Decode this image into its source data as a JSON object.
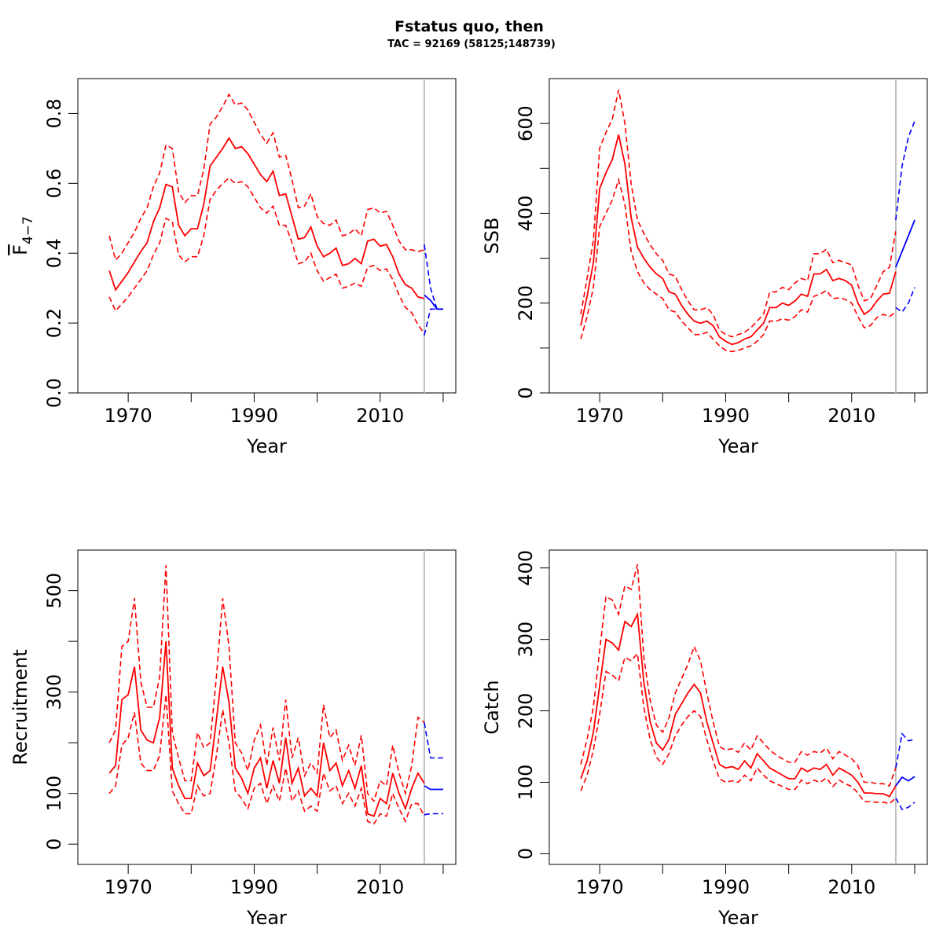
{
  "figure": {
    "title": "Fstatus quo, then",
    "subtitle": "TAC = 92169 (58125;148739)"
  },
  "colors": {
    "historic": "#ff0000",
    "forecast": "#0000ff",
    "divider": "#bebebe",
    "axis": "#000000"
  },
  "chart_data": [
    {
      "type": "line",
      "panel": "top-left",
      "title": "",
      "xlabel": "Year",
      "ylabel": "F",
      "ylabel_subscript": "4−7",
      "xlim": [
        1962,
        2022
      ],
      "ylim": [
        0.0,
        0.9
      ],
      "xticks": [
        1970,
        1980,
        1990,
        2000,
        2010,
        2020
      ],
      "xtick_labels": [
        "1970",
        "",
        "1990",
        "",
        "2010",
        ""
      ],
      "yticks": [
        0.0,
        0.2,
        0.4,
        0.6,
        0.8
      ],
      "ytick_labels": [
        "0.0",
        "0.2",
        "0.4",
        "0.6",
        "0.8"
      ],
      "divider_year": 2017,
      "historic": {
        "x": [
          1967,
          1968,
          1969,
          1970,
          1971,
          1972,
          1973,
          1974,
          1975,
          1976,
          1977,
          1978,
          1979,
          1980,
          1981,
          1982,
          1983,
          1984,
          1985,
          1986,
          1987,
          1988,
          1989,
          1990,
          1991,
          1992,
          1993,
          1994,
          1995,
          1996,
          1997,
          1998,
          1999,
          2000,
          2001,
          2002,
          2003,
          2004,
          2005,
          2006,
          2007,
          2008,
          2009,
          2010,
          2011,
          2012,
          2013,
          2014,
          2015,
          2016,
          2017
        ],
        "mid": [
          0.35,
          0.295,
          0.32,
          0.345,
          0.375,
          0.405,
          0.43,
          0.49,
          0.53,
          0.597,
          0.59,
          0.48,
          0.45,
          0.47,
          0.47,
          0.54,
          0.65,
          0.675,
          0.7,
          0.73,
          0.7,
          0.705,
          0.685,
          0.655,
          0.625,
          0.605,
          0.635,
          0.565,
          0.57,
          0.505,
          0.44,
          0.445,
          0.475,
          0.42,
          0.39,
          0.4,
          0.415,
          0.365,
          0.37,
          0.385,
          0.37,
          0.435,
          0.44,
          0.42,
          0.425,
          0.39,
          0.34,
          0.31,
          0.3,
          0.275,
          0.27
        ],
        "upper": [
          0.45,
          0.38,
          0.4,
          0.43,
          0.46,
          0.5,
          0.53,
          0.59,
          0.63,
          0.71,
          0.7,
          0.575,
          0.545,
          0.565,
          0.565,
          0.64,
          0.77,
          0.79,
          0.82,
          0.855,
          0.825,
          0.83,
          0.81,
          0.775,
          0.74,
          0.715,
          0.745,
          0.675,
          0.68,
          0.61,
          0.53,
          0.535,
          0.57,
          0.505,
          0.485,
          0.48,
          0.495,
          0.45,
          0.455,
          0.47,
          0.45,
          0.525,
          0.53,
          0.515,
          0.52,
          0.48,
          0.435,
          0.41,
          0.41,
          0.405,
          0.41
        ],
        "lower": [
          0.275,
          0.235,
          0.255,
          0.275,
          0.3,
          0.325,
          0.35,
          0.395,
          0.43,
          0.5,
          0.49,
          0.395,
          0.375,
          0.39,
          0.39,
          0.45,
          0.555,
          0.58,
          0.6,
          0.615,
          0.6,
          0.605,
          0.59,
          0.56,
          0.53,
          0.515,
          0.535,
          0.48,
          0.48,
          0.43,
          0.37,
          0.375,
          0.4,
          0.35,
          0.32,
          0.33,
          0.34,
          0.3,
          0.305,
          0.315,
          0.305,
          0.36,
          0.365,
          0.35,
          0.355,
          0.325,
          0.28,
          0.245,
          0.23,
          0.195,
          0.17
        ]
      },
      "forecast": {
        "x": [
          2017,
          2018,
          2019,
          2020
        ],
        "mid": [
          0.28,
          0.265,
          0.24,
          0.24
        ],
        "upper": [
          0.425,
          0.3,
          0.24,
          0.24
        ],
        "lower": [
          0.165,
          0.24,
          0.24,
          0.24
        ]
      }
    },
    {
      "type": "line",
      "panel": "top-right",
      "title": "",
      "xlabel": "Year",
      "ylabel": "SSB",
      "xlim": [
        1962,
        2022
      ],
      "ylim": [
        0,
        700
      ],
      "xticks": [
        1970,
        1980,
        1990,
        2000,
        2010,
        2020
      ],
      "xtick_labels": [
        "1970",
        "",
        "1990",
        "",
        "2010",
        ""
      ],
      "yticks": [
        0,
        100,
        200,
        300,
        400,
        500,
        600
      ],
      "ytick_labels": [
        "0",
        "",
        "200",
        "",
        "400",
        "",
        "600"
      ],
      "divider_year": 2017,
      "historic": {
        "x": [
          1967,
          1968,
          1969,
          1970,
          1971,
          1972,
          1973,
          1974,
          1975,
          1976,
          1977,
          1978,
          1979,
          1980,
          1981,
          1982,
          1983,
          1984,
          1985,
          1986,
          1987,
          1988,
          1989,
          1990,
          1991,
          1992,
          1993,
          1994,
          1995,
          1996,
          1997,
          1998,
          1999,
          2000,
          2001,
          2002,
          2003,
          2004,
          2005,
          2006,
          2007,
          2008,
          2009,
          2010,
          2011,
          2012,
          2013,
          2014,
          2015,
          2016,
          2017
        ],
        "mid": [
          150,
          215,
          290,
          455,
          490,
          520,
          575,
          510,
          390,
          325,
          300,
          280,
          265,
          255,
          225,
          220,
          195,
          175,
          160,
          155,
          160,
          150,
          125,
          115,
          108,
          112,
          120,
          125,
          140,
          155,
          190,
          190,
          200,
          195,
          205,
          220,
          215,
          265,
          265,
          275,
          250,
          255,
          250,
          240,
          200,
          175,
          185,
          205,
          220,
          222,
          270
        ],
        "upper": [
          175,
          255,
          340,
          545,
          580,
          610,
          675,
          600,
          465,
          385,
          355,
          330,
          310,
          295,
          265,
          260,
          230,
          205,
          185,
          185,
          190,
          175,
          140,
          130,
          125,
          130,
          135,
          145,
          160,
          175,
          225,
          225,
          235,
          230,
          245,
          255,
          250,
          310,
          310,
          320,
          290,
          295,
          290,
          285,
          240,
          205,
          210,
          240,
          270,
          280,
          360
        ],
        "lower": [
          120,
          170,
          235,
          370,
          400,
          430,
          475,
          420,
          315,
          270,
          245,
          230,
          220,
          210,
          185,
          180,
          160,
          145,
          130,
          130,
          135,
          120,
          105,
          95,
          92,
          95,
          100,
          105,
          115,
          130,
          160,
          160,
          165,
          162,
          170,
          185,
          180,
          215,
          220,
          228,
          210,
          212,
          208,
          200,
          170,
          145,
          150,
          168,
          175,
          170,
          180
        ]
      },
      "forecast": {
        "x": [
          2017,
          2018,
          2019,
          2020
        ],
        "mid": [
          280,
          315,
          350,
          385
        ],
        "upper": [
          385,
          505,
          570,
          605
        ],
        "lower": [
          190,
          180,
          200,
          235
        ]
      }
    },
    {
      "type": "line",
      "panel": "bottom-left",
      "title": "",
      "xlabel": "Year",
      "ylabel": "Recruitment",
      "xlim": [
        1962,
        2022
      ],
      "ylim": [
        -40,
        580
      ],
      "xticks": [
        1970,
        1980,
        1990,
        2000,
        2010,
        2020
      ],
      "xtick_labels": [
        "1970",
        "",
        "1990",
        "",
        "2010",
        ""
      ],
      "yticks": [
        0,
        100,
        200,
        300,
        400,
        500
      ],
      "ytick_labels": [
        "0",
        "100",
        "",
        "300",
        "",
        "500"
      ],
      "divider_year": 2017,
      "historic": {
        "x": [
          1967,
          1968,
          1969,
          1970,
          1971,
          1972,
          1973,
          1974,
          1975,
          1976,
          1977,
          1978,
          1979,
          1980,
          1981,
          1982,
          1983,
          1984,
          1985,
          1986,
          1987,
          1988,
          1989,
          1990,
          1991,
          1992,
          1993,
          1994,
          1995,
          1996,
          1997,
          1998,
          1999,
          2000,
          2001,
          2002,
          2003,
          2004,
          2005,
          2006,
          2007,
          2008,
          2009,
          2010,
          2011,
          2012,
          2013,
          2014,
          2015,
          2016,
          2017
        ],
        "mid": [
          140,
          155,
          285,
          295,
          350,
          225,
          205,
          200,
          250,
          400,
          150,
          115,
          90,
          90,
          160,
          135,
          145,
          245,
          350,
          280,
          150,
          130,
          100,
          150,
          170,
          110,
          165,
          120,
          210,
          120,
          150,
          95,
          110,
          95,
          200,
          145,
          160,
          115,
          145,
          110,
          155,
          60,
          55,
          90,
          80,
          140,
          100,
          70,
          110,
          140,
          120
        ],
        "upper": [
          200,
          225,
          390,
          400,
          485,
          320,
          270,
          270,
          330,
          550,
          220,
          170,
          125,
          125,
          220,
          190,
          200,
          330,
          485,
          390,
          200,
          180,
          145,
          205,
          235,
          155,
          230,
          165,
          285,
          170,
          210,
          135,
          160,
          140,
          275,
          210,
          225,
          165,
          195,
          155,
          215,
          100,
          85,
          125,
          115,
          195,
          140,
          100,
          155,
          250,
          240
        ],
        "lower": [
          100,
          115,
          195,
          210,
          260,
          160,
          145,
          145,
          175,
          295,
          105,
          80,
          60,
          60,
          115,
          95,
          100,
          175,
          265,
          200,
          105,
          90,
          70,
          110,
          120,
          80,
          115,
          85,
          150,
          85,
          105,
          65,
          75,
          65,
          140,
          105,
          115,
          80,
          100,
          75,
          110,
          45,
          40,
          60,
          55,
          100,
          70,
          45,
          80,
          80,
          55
        ]
      },
      "forecast": {
        "x": [
          2017,
          2018,
          2019,
          2020
        ],
        "mid": [
          115,
          108,
          108,
          108
        ],
        "upper": [
          240,
          170,
          170,
          170
        ],
        "lower": [
          58,
          60,
          60,
          60
        ]
      }
    },
    {
      "type": "line",
      "panel": "bottom-right",
      "title": "",
      "xlabel": "Year",
      "ylabel": "Catch",
      "xlim": [
        1962,
        2022
      ],
      "ylim": [
        -15,
        425
      ],
      "xticks": [
        1970,
        1980,
        1990,
        2000,
        2010,
        2020
      ],
      "xtick_labels": [
        "1970",
        "",
        "1990",
        "",
        "2010",
        ""
      ],
      "yticks": [
        0,
        100,
        200,
        300,
        400
      ],
      "ytick_labels": [
        "0",
        "100",
        "200",
        "300",
        "400"
      ],
      "divider_year": 2017,
      "historic": {
        "x": [
          1967,
          1968,
          1969,
          1970,
          1971,
          1972,
          1973,
          1974,
          1975,
          1976,
          1977,
          1978,
          1979,
          1980,
          1981,
          1982,
          1983,
          1984,
          1985,
          1986,
          1987,
          1988,
          1989,
          1990,
          1991,
          1992,
          1993,
          1994,
          1995,
          1996,
          1997,
          1998,
          1999,
          2000,
          2001,
          2002,
          2003,
          2004,
          2005,
          2006,
          2007,
          2008,
          2009,
          2010,
          2011,
          2012,
          2013,
          2014,
          2015,
          2016,
          2017
        ],
        "mid": [
          105,
          130,
          170,
          235,
          300,
          295,
          285,
          325,
          318,
          335,
          240,
          185,
          155,
          145,
          160,
          195,
          210,
          225,
          237,
          225,
          185,
          155,
          125,
          120,
          122,
          118,
          130,
          120,
          140,
          130,
          120,
          115,
          110,
          105,
          105,
          120,
          115,
          120,
          118,
          125,
          110,
          120,
          115,
          110,
          100,
          85,
          85,
          84,
          84,
          80,
          95
        ],
        "upper": [
          125,
          160,
          205,
          285,
          360,
          355,
          335,
          375,
          370,
          405,
          275,
          215,
          180,
          170,
          190,
          225,
          245,
          265,
          290,
          270,
          225,
          185,
          150,
          145,
          147,
          142,
          155,
          145,
          165,
          155,
          145,
          138,
          133,
          128,
          128,
          143,
          138,
          143,
          141,
          148,
          133,
          143,
          138,
          133,
          123,
          100,
          100,
          98,
          98,
          95,
          120
        ],
        "lower": [
          88,
          110,
          145,
          195,
          255,
          250,
          242,
          275,
          270,
          280,
          205,
          160,
          135,
          125,
          140,
          165,
          180,
          192,
          200,
          192,
          160,
          130,
          105,
          100,
          102,
          100,
          110,
          102,
          120,
          110,
          102,
          98,
          94,
          90,
          90,
          103,
          98,
          103,
          100,
          106,
          94,
          103,
          98,
          94,
          85,
          73,
          73,
          72,
          72,
          70,
          78
        ]
      },
      "forecast": {
        "x": [
          2017,
          2018,
          2019,
          2020
        ],
        "mid": [
          95,
          107,
          102,
          108
        ],
        "upper": [
          120,
          168,
          158,
          160
        ],
        "lower": [
          78,
          62,
          65,
          72
        ]
      }
    }
  ]
}
